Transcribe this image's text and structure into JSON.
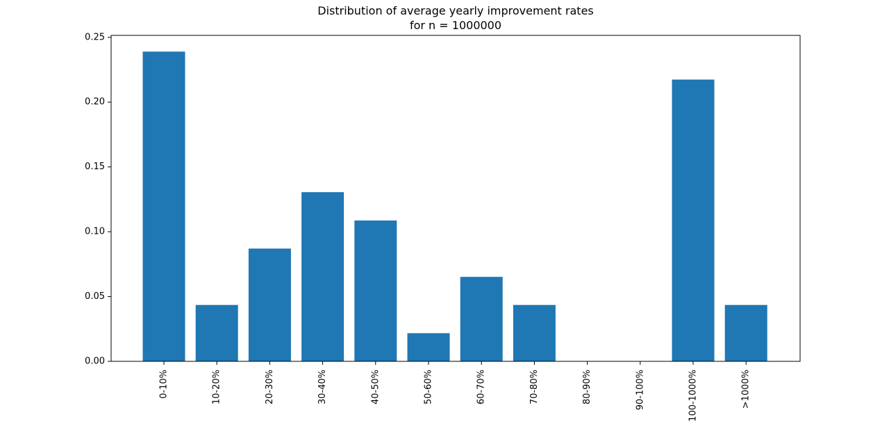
{
  "chart_data": {
    "type": "bar",
    "title": "Distribution of average yearly improvement rates",
    "subtitle": "for n = 1000000",
    "categories": [
      "0-10%",
      "10-20%",
      "20-30%",
      "30-40%",
      "40-50%",
      "50-60%",
      "60-70%",
      "70-80%",
      "80-90%",
      "90-100%",
      "100-1000%",
      ">1000%"
    ],
    "values": [
      0.239,
      0.0435,
      0.087,
      0.1305,
      0.1087,
      0.0217,
      0.0652,
      0.0435,
      0.0,
      0.0,
      0.2174,
      0.0435
    ],
    "ylim": [
      0,
      0.2515
    ],
    "yticks": [
      "0.00",
      "0.05",
      "0.10",
      "0.15",
      "0.20",
      "0.25"
    ],
    "xlabel": "",
    "ylabel": "",
    "grid": false,
    "colors": {
      "bar": "#1f77b4"
    }
  }
}
